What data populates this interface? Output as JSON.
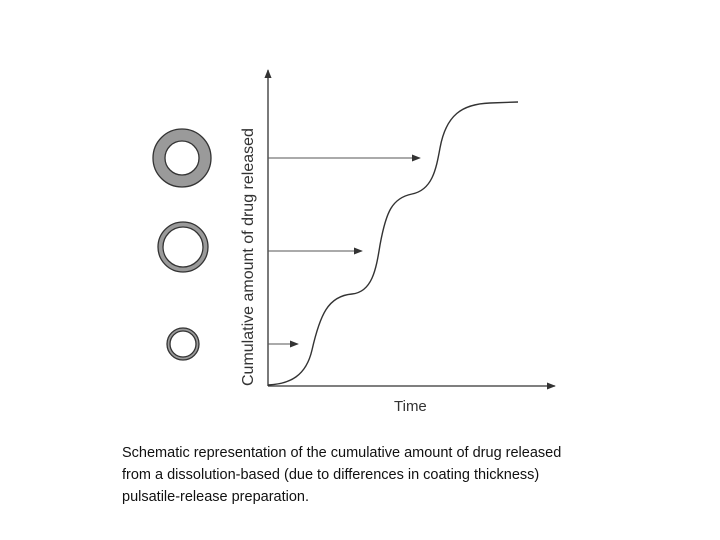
{
  "figure": {
    "y_axis_label": "Cumulative amount of drug released",
    "x_axis_label": "Time",
    "pellets": [
      "thick-coating",
      "medium-coating",
      "thin-coating"
    ]
  },
  "caption": {
    "lines": [
      "Schematic representation of the cumulative amount of drug released",
      "from a dissolution-based (due to differences in coating thickness)",
      "pulsatile-release preparation."
    ]
  },
  "colors": {
    "line": "#333333",
    "coating": "#9a9a9a",
    "core": "#ffffff"
  }
}
